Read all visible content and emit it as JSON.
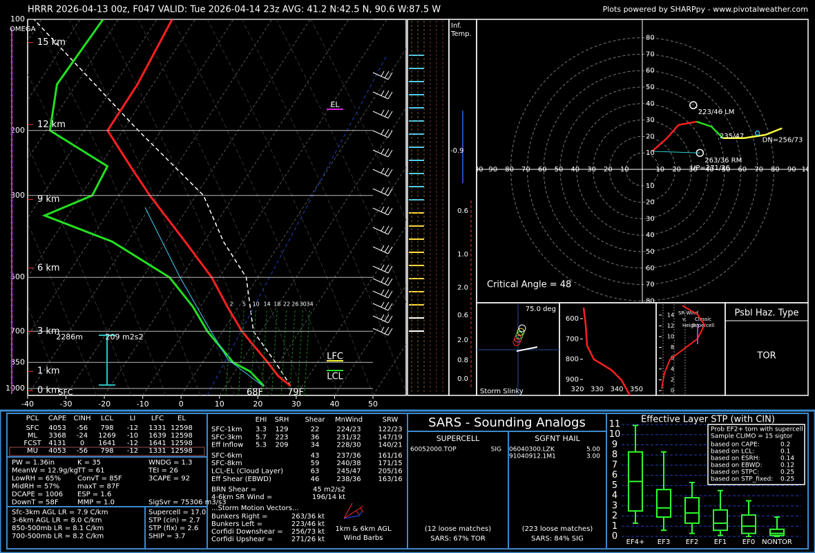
{
  "header": {
    "title": "HRRR 2026-04-13 00z, F047  VALID: Tue 2026-04-14 23z  AVG: 41.2 N:42.5 N, 90.6 W:87.5 W",
    "credit": "Plots powered by SHARPpy - www.pivotalweather.com"
  },
  "skewt": {
    "pressure_ticks": [
      100,
      200,
      300,
      500,
      700,
      850,
      1000
    ],
    "height_ticks": [
      {
        "value": 15,
        "label": "15 km"
      },
      {
        "value": 12,
        "label": "12 km"
      },
      {
        "value": 9,
        "label": "9 km"
      },
      {
        "value": 6,
        "label": "6 km"
      },
      {
        "value": 3,
        "label": "3 km"
      },
      {
        "value": 1,
        "label": "1 km"
      },
      {
        "value": 0,
        "label": "0 km"
      }
    ],
    "temp_ticks": [
      -40,
      -30,
      -20,
      -10,
      0,
      10,
      20,
      30,
      40,
      50
    ],
    "temperature": {
      "p": [
        985,
        925,
        850,
        700,
        600,
        500,
        400,
        300,
        250,
        200,
        150,
        100
      ],
      "t": [
        27,
        22,
        17,
        5,
        -3,
        -12,
        -25,
        -42,
        -52,
        -64,
        -64,
        -66
      ],
      "color": "#ff2020"
    },
    "dewpoint": {
      "p": [
        985,
        900,
        850,
        700,
        600,
        500,
        400,
        340,
        300,
        250,
        200,
        150,
        100
      ],
      "t": [
        20,
        14,
        8,
        -4,
        -12,
        -23,
        -44,
        -66,
        -57,
        -58,
        -79,
        -85,
        -84
      ],
      "color": "#22e022"
    },
    "parcel": {
      "p": [
        985,
        850,
        700,
        500,
        400,
        300,
        200,
        100
      ],
      "t": [
        27,
        19,
        8,
        -3,
        -15,
        -28,
        -56,
        -102
      ],
      "color": "#ffffff"
    },
    "omega": "OMEGA",
    "el": "EL",
    "lfc": "LFC",
    "lcl": "LCL",
    "sfc": "SFC",
    "sfc_dewpoint": "68F",
    "sfc_temp": "79F",
    "eff_inflow_top": "2286m",
    "eff_srh": "209 m2s2",
    "mixing_ratio_labels": [
      "2",
      "5",
      "10",
      "14",
      "18",
      "22",
      "26",
      "30",
      "34"
    ]
  },
  "inf_temp": {
    "title": [
      "Inf.",
      "Temp."
    ],
    "labels": [
      "-0.9",
      "0.6",
      "1.0",
      "2.0",
      "0.6",
      "2.0",
      "0.8",
      "0.0"
    ]
  },
  "hodograph": {
    "rings": [
      10,
      20,
      30,
      40,
      50,
      60,
      70,
      80
    ],
    "x_ticks": [
      10,
      20,
      30,
      40,
      50,
      60,
      70,
      80,
      90,
      100
    ],
    "trace": {
      "u": [
        6,
        15,
        22,
        33,
        42,
        49,
        62,
        75,
        85
      ],
      "v": [
        11,
        19,
        27,
        29,
        26,
        19,
        19,
        21,
        25
      ],
      "colors": [
        "#ff2020",
        "#ff2020",
        "#ff2020",
        "#22e022",
        "#22e022",
        "#ffff40",
        "#ffff40",
        "#ffff40",
        "#20c0ff"
      ]
    },
    "markers": [
      {
        "label": "223/46 LM",
        "u": 31,
        "v": 39
      },
      {
        "label": "263/36 RM",
        "u": 35,
        "v": 10
      },
      {
        "label": "DN=256/73",
        "u": 70,
        "v": 22
      }
    ],
    "annotations": [
      "235/47",
      "UP=271/26"
    ],
    "critical_angle": "Critical Angle = 48"
  },
  "slinky": {
    "title": "Storm Slinky",
    "angle": "75.0 deg"
  },
  "theta_e": {
    "y_ticks": [
      600,
      700,
      800,
      900
    ],
    "x_ticks": [
      320,
      330,
      340,
      350
    ]
  },
  "sr_wind": {
    "y_ticks": [
      0,
      2,
      4,
      6,
      8,
      10,
      12,
      14
    ],
    "title": [
      "SR Wind",
      "v.",
      "Height"
    ],
    "reference": [
      "Classic",
      "Supercell"
    ]
  },
  "hazard": {
    "title": "Psbl Haz. Type",
    "value": "TOR"
  },
  "thermo": {
    "header": [
      "PCL",
      "CAPE",
      "CINH",
      "LCL",
      "LI",
      "LFC",
      "EL"
    ],
    "rows": [
      [
        "SFC",
        "4053",
        "-56",
        "798",
        "-12",
        "1331",
        "12598"
      ],
      [
        "ML",
        "3368",
        "-24",
        "1269",
        "-10",
        "1639",
        "12598"
      ],
      [
        "FCST",
        "4131",
        "0",
        "1641",
        "-12",
        "1641",
        "12598"
      ],
      [
        "MU",
        "4053",
        "-56",
        "798",
        "-12",
        "1331",
        "12598"
      ]
    ],
    "indices": [
      [
        "PW = 1.36in",
        "K = 35",
        "WNDG = 1.3"
      ],
      [
        "MeanW = 12.9g/kg",
        "TT = 61",
        "TEI = 26"
      ],
      [
        "LowRH = 65%",
        "ConvT = 85F",
        "3CAPE = 92"
      ],
      [
        "MidRH = 57%",
        "maxT = 87F"
      ],
      [
        "DCAPE = 1006",
        "ESP = 1.6"
      ],
      [
        "DownT = 58F",
        "MMP = 1.0",
        "SigSvr = 75306 m3/s3"
      ]
    ],
    "lapse_rates": [
      "Sfc-3km AGL LR = 7.9 C/km",
      "3-6km AGL LR = 8.0 C/km",
      "850-500mb LR = 8.1 C/km",
      "700-500mb LR = 8.2 C/km"
    ],
    "composites": [
      "Supercell = 17.0",
      "STP (cin) = 2.7",
      "STP (fix) = 2.6",
      "SHIP = 3.7"
    ]
  },
  "kinematics": {
    "header": [
      "EHI",
      "SRH",
      "Shear",
      "MnWind",
      "SRW"
    ],
    "rows": [
      {
        "label": "SFC-1km",
        "ehi": "3.3",
        "srh": "129",
        "shear": "22",
        "mnwind": "224/23",
        "srw": "122/23"
      },
      {
        "label": "SFC-3km",
        "ehi": "5.7",
        "srh": "223",
        "shear": "36",
        "mnwind": "231/32",
        "srw": "147/19"
      },
      {
        "label": "Eff Inflow",
        "ehi": "5.3",
        "srh": "209",
        "shear": "34",
        "mnwind": "228/30",
        "srw": "140/21"
      },
      {
        "label": "SFC-6km",
        "shear": "43",
        "mnwind": "237/36",
        "srw": "161/16"
      },
      {
        "label": "SFC-8km",
        "shear": "59",
        "mnwind": "240/38",
        "srw": "171/15"
      },
      {
        "label": "LCL-EL (Cloud Layer)",
        "shear": "63",
        "mnwind": "245/47",
        "srw": "205/16"
      },
      {
        "label": "Eff Shear (EBWD)",
        "shear": "46",
        "mnwind": "238/36",
        "srw": "163/16"
      }
    ],
    "extra": [
      [
        "BRN Shear =",
        "45 m2/s2"
      ],
      [
        "4-6km SR Wind =",
        "196/14 kt"
      ]
    ],
    "storm_title": "...Storm Motion Vectors...",
    "storm_motion": [
      [
        "Bunkers Right =",
        "263/36 kt"
      ],
      [
        "Bunkers Left =",
        "223/46 kt"
      ],
      [
        "Corfidi Downshear =",
        "256/73 kt"
      ],
      [
        "Corfidi Upshear =",
        "271/26 kt"
      ]
    ],
    "barb_legend": [
      "1km & 6km AGL",
      "Wind Barbs"
    ]
  },
  "sars": {
    "title": "SARS - Sounding Analogs",
    "supercell": {
      "title": "SUPERCELL",
      "matches": [
        [
          "60052000.TOP",
          "SIG"
        ]
      ],
      "loose": "(12 loose matches)",
      "summary": "SARS: 67% TOR"
    },
    "hail": {
      "title": "SGFNT HAIL",
      "matches": [
        [
          "06040300.LZK",
          "5.00"
        ],
        [
          "91040912.1M1",
          "3.00"
        ]
      ],
      "loose": "(223 loose matches)",
      "summary": "SARS: 84% SIG"
    }
  },
  "stp": {
    "title": "Effective Layer STP (with CIN)",
    "yticks": [
      0,
      1,
      2,
      3,
      4,
      5,
      6,
      7,
      8,
      9,
      10,
      11
    ],
    "ylim": [
      0,
      11
    ],
    "categories": [
      "EF4+",
      "EF3",
      "EF2",
      "EF1",
      "EF0",
      "NONTOR"
    ],
    "boxes": [
      {
        "low": 1.3,
        "q1": 2.5,
        "median": 5.4,
        "q3": 8.3,
        "high": 10.9
      },
      {
        "low": 0.6,
        "q1": 1.9,
        "median": 2.8,
        "q3": 4.6,
        "high": 8.3
      },
      {
        "low": 0.3,
        "q1": 1.3,
        "median": 2.3,
        "q3": 3.8,
        "high": 5.3
      },
      {
        "low": 0.1,
        "q1": 0.6,
        "median": 1.3,
        "q3": 2.6,
        "high": 4.5
      },
      {
        "low": 0,
        "q1": 0.3,
        "median": 1.0,
        "q3": 2.1,
        "high": 3.5
      },
      {
        "low": 0,
        "q1": 0.1,
        "median": 0.3,
        "q3": 0.7,
        "high": 1.9
      }
    ],
    "legend_title": [
      "Prob EF2+ torn with supercell",
      "Sample CLIMO = 15 sigtor"
    ],
    "legend": [
      [
        "based on CAPE:",
        "0.2"
      ],
      [
        "based on LCL:",
        "0.1"
      ],
      [
        "based on ESRH:",
        "0.14"
      ],
      [
        "based on EBWD:",
        "0.12"
      ],
      [
        "based on STPC:",
        "0.25"
      ],
      [
        "based on STP_fixed:",
        "0.25"
      ]
    ]
  }
}
